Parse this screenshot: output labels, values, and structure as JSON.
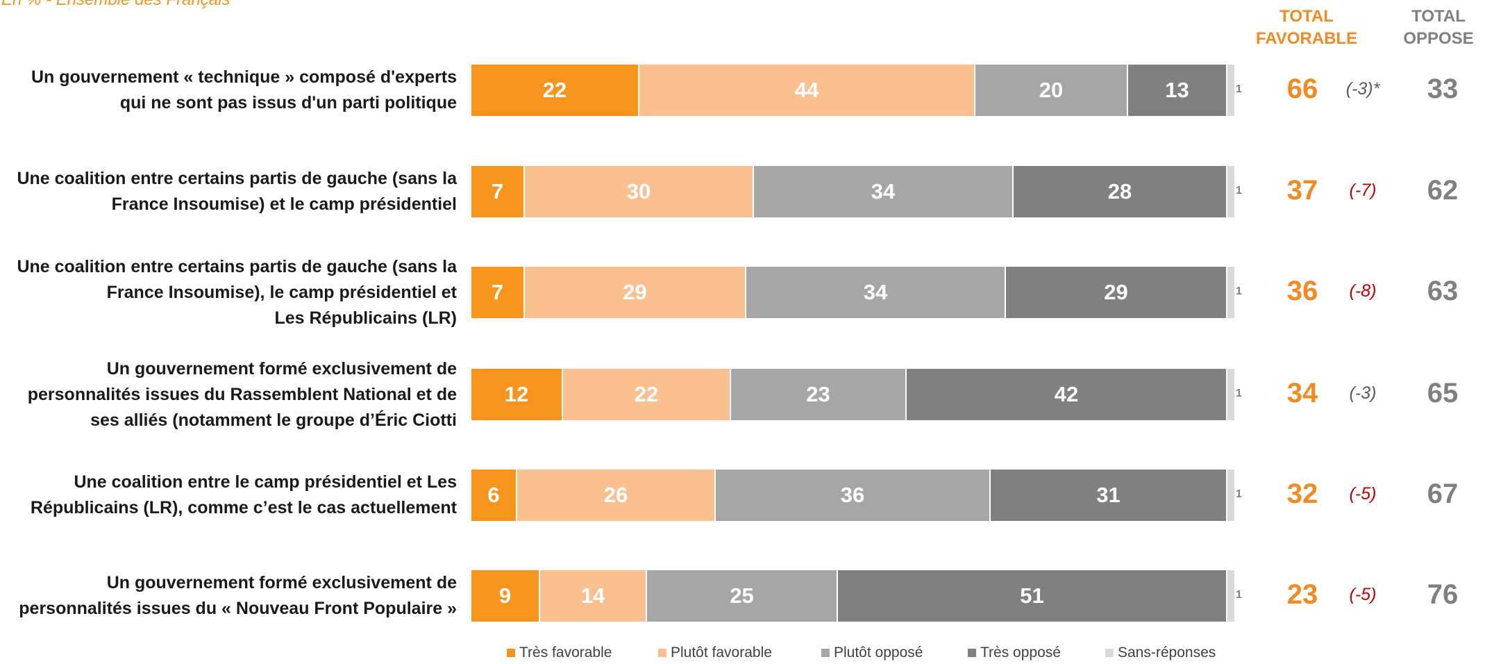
{
  "subtitle": "En % - Ensemble des Français",
  "headers": {
    "favorable": [
      "TOTAL",
      "FAVORABLE"
    ],
    "oppose": [
      "TOTAL",
      "OPPOSE"
    ]
  },
  "colors": {
    "tres_favorable": "#F7941D",
    "plutot_favorable": "#FAC090",
    "plutot_oppose": "#A6A6A6",
    "tres_oppose": "#808080",
    "sans_reponses": "#D9D9D9",
    "evol_red": "#C00000",
    "evol_grey": "#595959"
  },
  "chart_data": {
    "type": "bar",
    "orientation": "horizontal",
    "stacked": true,
    "title": "",
    "xlabel": "",
    "ylabel": "",
    "xlim": [
      0,
      101
    ],
    "grid": false,
    "legend_position": "bottom",
    "categories": [
      "Un gouvernement « technique » composé d'experts\nqui ne sont pas issus d'un parti politique",
      "Une coalition entre certains partis de gauche (sans la\nFrance Insoumise) et le camp présidentiel",
      "Une coalition entre certains partis de gauche (sans la\nFrance Insoumise), le camp présidentiel et\nLes Républicains (LR)",
      "Un gouvernement formé exclusivement de\npersonnalités issues du Rassemblent National et de\nses alliés (notamment le groupe d’Éric Ciotti",
      "Une coalition entre le camp présidentiel et Les\nRépublicains (LR), comme c’est le cas actuellement",
      "Un gouvernement formé exclusivement de\npersonnalités issues du « Nouveau Front Populaire »"
    ],
    "series": [
      {
        "name": "Très favorable",
        "values": [
          22,
          7,
          7,
          12,
          6,
          9
        ]
      },
      {
        "name": "Plutôt favorable",
        "values": [
          44,
          30,
          29,
          22,
          26,
          14
        ]
      },
      {
        "name": "Plutôt opposé",
        "values": [
          20,
          34,
          34,
          23,
          36,
          25
        ]
      },
      {
        "name": "Très opposé",
        "values": [
          13,
          28,
          29,
          42,
          31,
          51
        ]
      },
      {
        "name": "Sans-réponses",
        "values": [
          1,
          1,
          1,
          1,
          1,
          1
        ]
      }
    ],
    "total_favorable": [
      66,
      37,
      36,
      34,
      32,
      23
    ],
    "evolution": [
      "(-3)*",
      "(-7)",
      "(-8)",
      "(-3)",
      "(-5)",
      "(-5)"
    ],
    "evolution_red": [
      false,
      true,
      true,
      false,
      true,
      true
    ],
    "total_oppose": [
      33,
      62,
      63,
      65,
      67,
      76
    ]
  }
}
